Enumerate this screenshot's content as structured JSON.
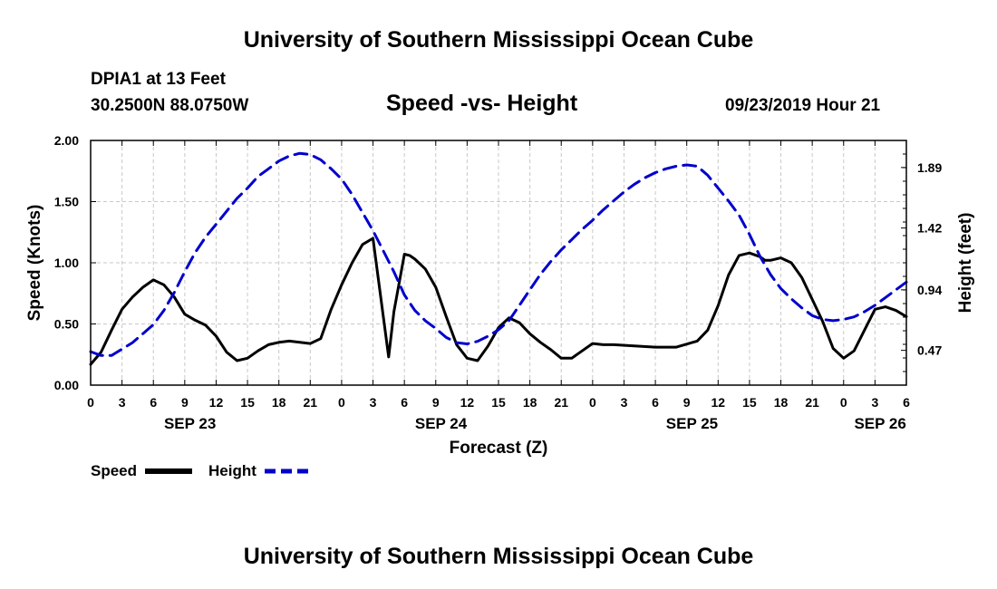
{
  "header": {
    "title": "University of Southern Mississippi Ocean Cube",
    "station": "DPIA1 at 13 Feet",
    "coords": "30.2500N 88.0750W",
    "subtitle": "Speed -vs- Height",
    "date": "09/23/2019 Hour 21"
  },
  "footer": {
    "title": "University of Southern Mississippi Ocean Cube"
  },
  "chart_data": {
    "type": "line",
    "title": "Speed -vs- Height",
    "xlabel": "Forecast (Z)",
    "ylabel": "Speed (Knots)",
    "y2label": "Height (feet)",
    "xlim": [
      0,
      78
    ],
    "ylim": [
      0,
      2.0
    ],
    "y2lim": [
      0.2,
      2.1
    ],
    "x_tick_labels": [
      "0",
      "3",
      "6",
      "9",
      "12",
      "15",
      "18",
      "21",
      "0",
      "3",
      "6",
      "9",
      "12",
      "15",
      "18",
      "21",
      "0",
      "3",
      "6",
      "9",
      "12",
      "15",
      "18",
      "21",
      "0",
      "3",
      "6"
    ],
    "date_labels": [
      {
        "hour": 9.5,
        "label": "SEP 23"
      },
      {
        "hour": 33.5,
        "label": "SEP 24"
      },
      {
        "hour": 57.5,
        "label": "SEP 25"
      },
      {
        "hour": 75.5,
        "label": "SEP 26"
      }
    ],
    "y_tick_labels": [
      "0.00",
      "0.50",
      "1.00",
      "1.50",
      "2.00"
    ],
    "y_ticks": [
      0,
      0.5,
      1.0,
      1.5,
      2.0
    ],
    "y2_tick_labels": [
      "0.47",
      "0.94",
      "1.42",
      "1.89"
    ],
    "y2_ticks": [
      0.47,
      0.94,
      1.42,
      1.89
    ],
    "grid": true,
    "legend": [
      {
        "name": "Speed",
        "color": "#000000",
        "dashed": false
      },
      {
        "name": "Height",
        "color": "#0000cc",
        "dashed": true
      }
    ],
    "series": [
      {
        "name": "Speed",
        "axis": "left",
        "color": "#000000",
        "x": [
          0,
          1,
          2,
          3,
          4,
          5,
          6,
          7,
          8,
          9,
          10,
          11,
          12,
          13,
          14,
          15,
          16,
          17,
          18,
          19,
          20,
          21,
          22,
          23,
          24,
          25,
          26,
          27,
          28,
          28.5,
          29,
          30,
          30.5,
          31,
          32,
          33,
          34,
          35,
          36,
          37,
          38,
          39,
          40,
          41,
          42,
          43,
          44,
          45,
          46,
          47,
          48,
          49,
          50,
          52,
          54,
          56,
          58,
          59,
          60,
          61,
          62,
          63,
          64,
          64.5,
          65,
          66,
          67,
          68,
          69,
          70,
          71,
          72,
          73,
          74,
          75,
          76,
          77,
          78
        ],
        "y": [
          0.17,
          0.27,
          0.45,
          0.62,
          0.72,
          0.8,
          0.86,
          0.82,
          0.72,
          0.58,
          0.53,
          0.49,
          0.4,
          0.27,
          0.2,
          0.22,
          0.28,
          0.33,
          0.35,
          0.36,
          0.35,
          0.34,
          0.38,
          0.62,
          0.82,
          1.0,
          1.15,
          1.2,
          0.55,
          0.23,
          0.6,
          1.07,
          1.06,
          1.03,
          0.95,
          0.8,
          0.56,
          0.33,
          0.22,
          0.2,
          0.32,
          0.47,
          0.55,
          0.51,
          0.42,
          0.35,
          0.29,
          0.22,
          0.22,
          0.28,
          0.34,
          0.33,
          0.33,
          0.32,
          0.31,
          0.31,
          0.36,
          0.45,
          0.65,
          0.9,
          1.06,
          1.08,
          1.05,
          1.02,
          1.02,
          1.04,
          1.0,
          0.88,
          0.7,
          0.52,
          0.3,
          0.22,
          0.28,
          0.45,
          0.62,
          0.64,
          0.61,
          0.56
        ]
      },
      {
        "name": "Height",
        "axis": "right",
        "color": "#0000cc",
        "x": [
          0,
          1,
          2,
          3,
          4,
          5,
          6,
          7,
          8,
          9,
          10,
          11,
          12,
          13,
          14,
          15,
          16,
          17,
          18,
          19,
          20,
          21,
          22,
          23,
          24,
          25,
          26,
          27,
          28,
          29,
          30,
          31,
          32,
          33,
          34,
          35,
          36,
          37,
          38,
          39,
          40,
          41,
          42,
          43,
          44,
          45,
          46,
          47,
          48,
          49,
          50,
          51,
          52,
          53,
          54,
          55,
          56,
          57,
          58,
          59,
          60,
          61,
          62,
          63,
          64,
          65,
          66,
          67,
          68,
          69,
          70,
          71,
          72,
          73,
          74,
          75,
          76,
          77,
          78
        ],
        "y": [
          0.46,
          0.43,
          0.43,
          0.48,
          0.53,
          0.6,
          0.67,
          0.78,
          0.92,
          1.08,
          1.23,
          1.35,
          1.45,
          1.55,
          1.65,
          1.73,
          1.82,
          1.88,
          1.94,
          1.98,
          2.0,
          1.99,
          1.95,
          1.88,
          1.8,
          1.68,
          1.54,
          1.4,
          1.24,
          1.08,
          0.9,
          0.78,
          0.7,
          0.64,
          0.57,
          0.53,
          0.52,
          0.54,
          0.58,
          0.63,
          0.7,
          0.82,
          0.94,
          1.06,
          1.16,
          1.25,
          1.33,
          1.41,
          1.48,
          1.56,
          1.63,
          1.7,
          1.76,
          1.81,
          1.85,
          1.88,
          1.9,
          1.91,
          1.9,
          1.83,
          1.73,
          1.63,
          1.52,
          1.37,
          1.2,
          1.06,
          0.95,
          0.87,
          0.8,
          0.74,
          0.71,
          0.7,
          0.71,
          0.73,
          0.77,
          0.82,
          0.88,
          0.94,
          1.0
        ]
      }
    ]
  }
}
